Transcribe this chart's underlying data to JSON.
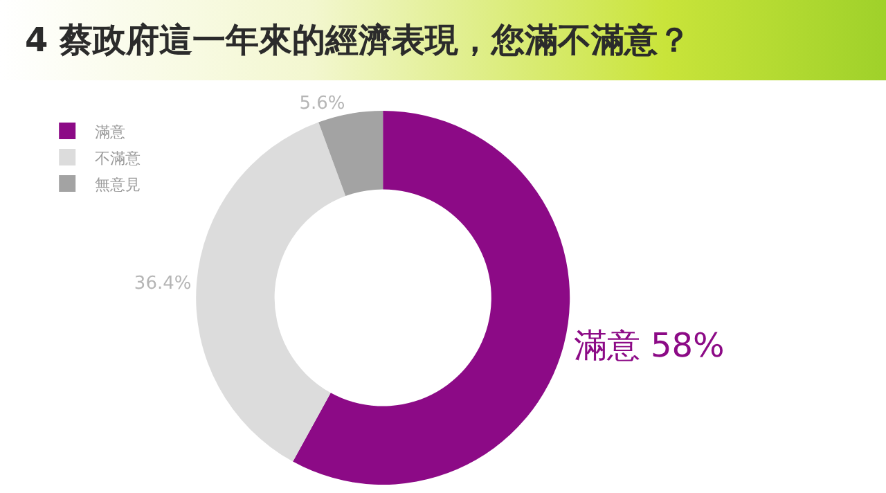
{
  "chart_data": {
    "type": "donut",
    "title": "4 蔡政府這一年來的經濟表現，您滿不滿意？",
    "categories": [
      "滿意",
      "不滿意",
      "無意見"
    ],
    "values": [
      58,
      36.4,
      5.6
    ],
    "colors": [
      "#8c0a86",
      "#dcdcdc",
      "#a3a3a3"
    ],
    "value_labels": [
      "滿意 58%",
      "36.4%",
      "5.6%"
    ],
    "legend": "top left"
  }
}
